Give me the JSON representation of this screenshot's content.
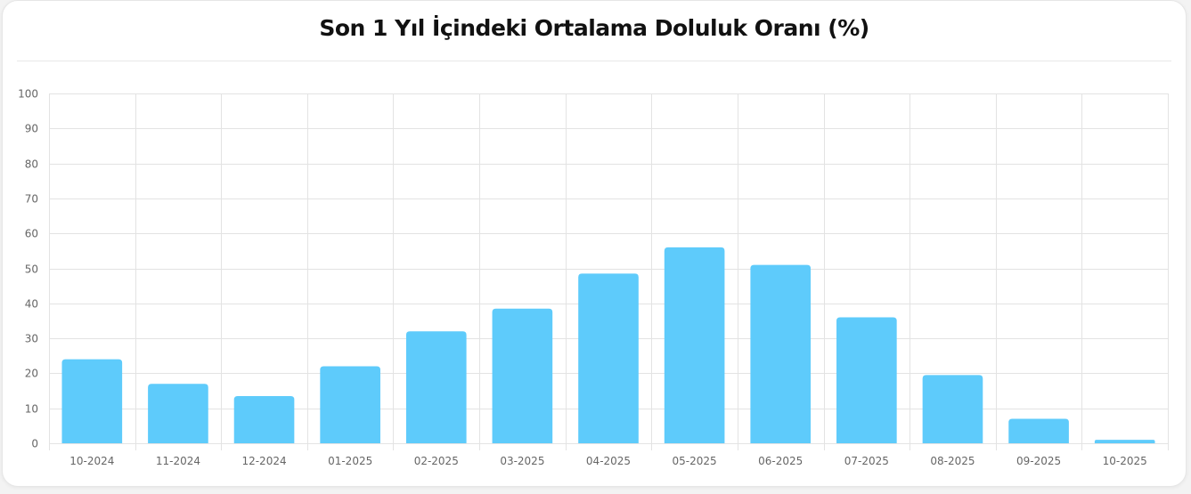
{
  "title": "Son 1 Yıl İçindeki Ortalama Doluluk Oranı (%)",
  "chart_data": {
    "type": "bar",
    "title": "Son 1 Yıl İçindeki Ortalama Doluluk Oranı (%)",
    "xlabel": "",
    "ylabel": "",
    "categories": [
      "10-2024",
      "11-2024",
      "12-2024",
      "01-2025",
      "02-2025",
      "03-2025",
      "04-2025",
      "05-2025",
      "06-2025",
      "07-2025",
      "08-2025",
      "09-2025",
      "10-2025"
    ],
    "values": [
      24,
      17,
      13.5,
      22,
      32,
      38.5,
      48.5,
      56,
      51,
      36,
      19.5,
      7,
      1
    ],
    "ylim": [
      0,
      100
    ],
    "yticks": [
      0,
      10,
      20,
      30,
      40,
      50,
      60,
      70,
      80,
      90,
      100
    ],
    "grid": true,
    "legend": "none",
    "bar_color": "#5ecbfb",
    "grid_color": "#e3e3e3",
    "tick_color": "#666666"
  }
}
